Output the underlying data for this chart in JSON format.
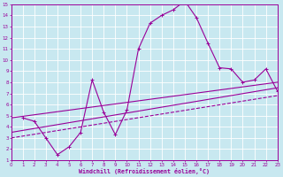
{
  "xlabel": "Windchill (Refroidissement éolien,°C)",
  "bg_color": "#c8e8f0",
  "grid_color": "#ffffff",
  "line_color": "#990099",
  "spine_color": "#990099",
  "xlim": [
    0,
    23
  ],
  "ylim": [
    1,
    15
  ],
  "xticks": [
    0,
    1,
    2,
    3,
    4,
    5,
    6,
    7,
    8,
    9,
    10,
    11,
    12,
    13,
    14,
    15,
    16,
    17,
    18,
    19,
    20,
    21,
    22,
    23
  ],
  "yticks": [
    1,
    2,
    3,
    4,
    5,
    6,
    7,
    8,
    9,
    10,
    11,
    12,
    13,
    14,
    15
  ],
  "line1_x": [
    1,
    2,
    3,
    4,
    5,
    6,
    7,
    8,
    9,
    10,
    11,
    12,
    13,
    14,
    15,
    16,
    17,
    18,
    19,
    20,
    21,
    22,
    23
  ],
  "line1_y": [
    4.8,
    4.5,
    3.0,
    1.5,
    2.2,
    3.5,
    8.2,
    5.3,
    3.3,
    5.5,
    11.0,
    13.3,
    14.0,
    14.5,
    15.3,
    13.8,
    11.5,
    9.3,
    9.2,
    8.0,
    8.2,
    9.2,
    7.2
  ],
  "line2_x": [
    0,
    23
  ],
  "line2_y": [
    3.5,
    7.5
  ],
  "line3_x": [
    0,
    23
  ],
  "line3_y": [
    4.8,
    8.0
  ],
  "line4_x": [
    0,
    23
  ],
  "line4_y": [
    3.0,
    6.8
  ]
}
